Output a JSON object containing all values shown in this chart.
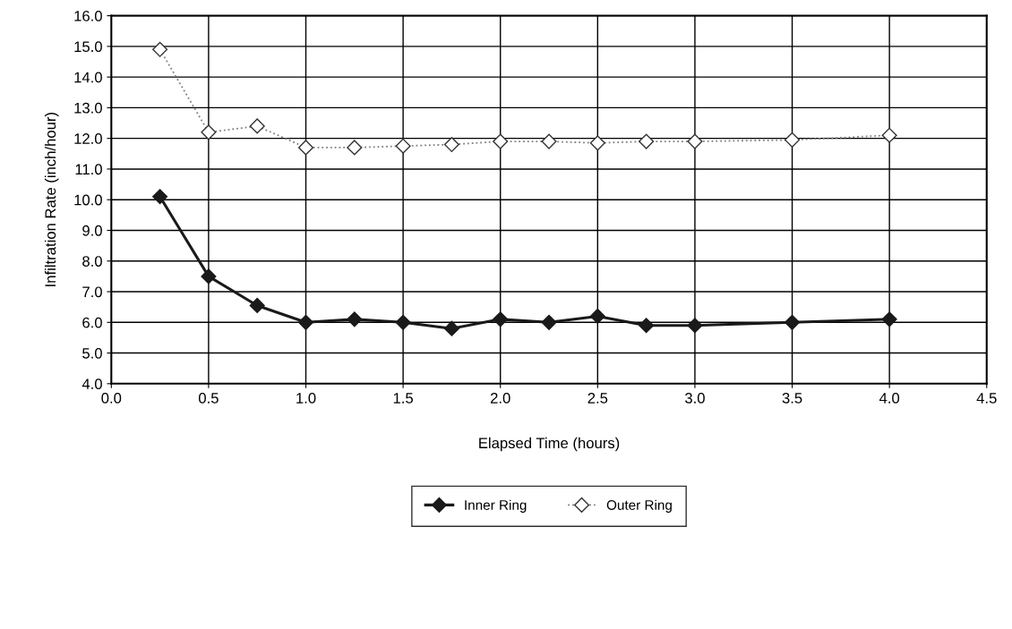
{
  "chart_data": {
    "type": "line",
    "xlabel": "Elapsed Time (hours)",
    "ylabel": "Infiltration Rate (inch/hour)",
    "x": [
      0.25,
      0.5,
      0.75,
      1.0,
      1.25,
      1.5,
      1.75,
      2.0,
      2.25,
      2.5,
      2.75,
      3.0,
      3.5,
      4.0
    ],
    "series": [
      {
        "name": "Inner Ring",
        "color": "#1a1a1a",
        "line_style": "solid",
        "marker": "diamond",
        "values": [
          10.1,
          7.5,
          6.55,
          6.0,
          6.1,
          6.0,
          5.8,
          6.1,
          6.0,
          6.2,
          5.9,
          5.9,
          6.0,
          6.1
        ]
      },
      {
        "name": "Outer Ring",
        "color": "#808080",
        "line_style": "dotted",
        "marker": "diamond",
        "values": [
          14.9,
          12.2,
          12.4,
          11.7,
          11.7,
          11.75,
          11.8,
          11.9,
          11.9,
          11.85,
          11.9,
          11.9,
          11.95,
          12.1
        ]
      }
    ],
    "xlim": [
      0.0,
      4.5
    ],
    "xticks": [
      {
        "value": 0,
        "label": "0.0"
      },
      {
        "value": 0.5,
        "label": "0.5"
      },
      {
        "value": 1,
        "label": "1.0"
      },
      {
        "value": 1.5,
        "label": "1.5"
      },
      {
        "value": 2,
        "label": "2.0"
      },
      {
        "value": 2.5,
        "label": "2.5"
      },
      {
        "value": 3,
        "label": "3.0"
      },
      {
        "value": 3.5,
        "label": "3.5"
      },
      {
        "value": 4,
        "label": "4.0"
      },
      {
        "value": 4.5,
        "label": "4.5"
      }
    ],
    "ylim": [
      4.0,
      16.0
    ],
    "yticks": [
      {
        "value": 4,
        "label": "4.0"
      },
      {
        "value": 5,
        "label": "5.0"
      },
      {
        "value": 6,
        "label": "6.0"
      },
      {
        "value": 7,
        "label": "7.0"
      },
      {
        "value": 8,
        "label": "8.0"
      },
      {
        "value": 9,
        "label": "9.0"
      },
      {
        "value": 10,
        "label": "10.0"
      },
      {
        "value": 11,
        "label": "11.0"
      },
      {
        "value": 12,
        "label": "12.0"
      },
      {
        "value": 13,
        "label": "13.0"
      },
      {
        "value": 14,
        "label": "14.0"
      },
      {
        "value": 15,
        "label": "15.0"
      },
      {
        "value": 16,
        "label": "16.0"
      }
    ],
    "grid": true,
    "legend": "bottom"
  }
}
